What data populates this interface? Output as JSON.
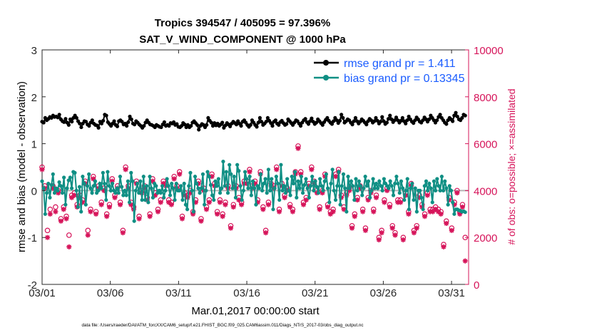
{
  "chart_data": {
    "type": "line",
    "title": "Tropics 394547 / 405095 = 97.396%",
    "subtitle": "SAT_V_WIND_COMPONENT @ 1000 hPa",
    "xlabel": "Mar.01,2017 00:00:00 start",
    "ylabel_left": "rmse and bias (model - observation)",
    "ylabel_right": "# of obs: o=possible; ×=assimilated",
    "footnote": "data file: /Users/raeder/DAI/ATM_forcXX/CAM6_setup/f.e21.FHIST_BGC.f09_025.CAM6assim.011/Diags_NTrS_2017-03/obs_diag_output.nc",
    "x_range": [
      0,
      31.25
    ],
    "y_left_range": [
      -2,
      3
    ],
    "y_right_range": [
      0,
      10000
    ],
    "x_ticks": [
      0,
      5,
      10,
      15,
      20,
      25,
      30
    ],
    "x_tick_labels": [
      "03/01",
      "03/06",
      "03/11",
      "03/16",
      "03/21",
      "03/26",
      "03/31"
    ],
    "y_left_ticks": [
      -2,
      -1,
      0,
      1,
      2,
      3
    ],
    "y_left_tick_labels": [
      "-2",
      "-1",
      "0",
      "1",
      "2",
      "3"
    ],
    "y_right_ticks": [
      0,
      2000,
      4000,
      6000,
      8000,
      10000
    ],
    "y_right_tick_labels": [
      "0",
      "2000",
      "4000",
      "6000",
      "8000",
      "10000"
    ],
    "legend_location": "top-right",
    "colors": {
      "rmse": "#000000",
      "bias": "#0f8f84",
      "obs": "#d6145a",
      "zero_line": "#b4b4b4",
      "axis": "#262626",
      "legend_text": "#1a5cff"
    },
    "series": [
      {
        "name": "rmse grand pr = 1.411",
        "marker": "filled-circle",
        "values": [
          1.47,
          1.45,
          1.55,
          1.5,
          1.53,
          1.57,
          1.55,
          1.6,
          1.57,
          1.58,
          1.56,
          1.62,
          1.52,
          1.48,
          1.46,
          1.53,
          1.45,
          1.4,
          1.52,
          1.47,
          1.55,
          1.6,
          1.55,
          1.48,
          1.43,
          1.35,
          1.43,
          1.48,
          1.47,
          1.41,
          1.38,
          1.45,
          1.5,
          1.43,
          1.4,
          1.39,
          1.34,
          1.47,
          1.43,
          1.49,
          1.62,
          1.6,
          1.46,
          1.42,
          1.38,
          1.43,
          1.48,
          1.4,
          1.37,
          1.48,
          1.5,
          1.47,
          1.41,
          1.43,
          1.38,
          1.46,
          1.58,
          1.52,
          1.43,
          1.41,
          1.48,
          1.45,
          1.41,
          1.38,
          1.34,
          1.38,
          1.45,
          1.5,
          1.45,
          1.41,
          1.4,
          1.38,
          1.35,
          1.4,
          1.38,
          1.36,
          1.35,
          1.41,
          1.46,
          1.38,
          1.4,
          1.38,
          1.44,
          1.43,
          1.46,
          1.4,
          1.42,
          1.36,
          1.35,
          1.38,
          1.44,
          1.41,
          1.35,
          1.4,
          1.35,
          1.38,
          1.45,
          1.48,
          1.44,
          1.4,
          1.3,
          1.38,
          1.42,
          1.4,
          1.35,
          1.4,
          1.55,
          1.49,
          1.45,
          1.38,
          1.44,
          1.39,
          1.43,
          1.38,
          1.41,
          1.45,
          1.34,
          1.39,
          1.44,
          1.41,
          1.37,
          1.43,
          1.47,
          1.44,
          1.41,
          1.48,
          1.43,
          1.38,
          1.47,
          1.5,
          1.45,
          1.4,
          1.36,
          1.4,
          1.5,
          1.45,
          1.4,
          1.36,
          1.45,
          1.55,
          1.47,
          1.4,
          1.43,
          1.47,
          1.55,
          1.49,
          1.44,
          1.38,
          1.47,
          1.5,
          1.43,
          1.4,
          1.46,
          1.49,
          1.44,
          1.4,
          1.42,
          1.52,
          1.48,
          1.44,
          1.4,
          1.45,
          1.5,
          1.48,
          1.43,
          1.38,
          1.45,
          1.5,
          1.53,
          1.46,
          1.42,
          1.48,
          1.54,
          1.47,
          1.42,
          1.45,
          1.52,
          1.48,
          1.44,
          1.4,
          1.46,
          1.51,
          1.55,
          1.49,
          1.45,
          1.42,
          1.48,
          1.55,
          1.5,
          1.44,
          1.49,
          1.62,
          1.55,
          1.45,
          1.48,
          1.52,
          1.5,
          1.45,
          1.41,
          1.48,
          1.55,
          1.48,
          1.43,
          1.47,
          1.52,
          1.49,
          1.45,
          1.41,
          1.48,
          1.53,
          1.5,
          1.45,
          1.48,
          1.55,
          1.49,
          1.43,
          1.47,
          1.57,
          1.48,
          1.42,
          1.45,
          1.53,
          1.6,
          1.52,
          1.46,
          1.5,
          1.56,
          1.5,
          1.45,
          1.49,
          1.55,
          1.48,
          1.43,
          1.5,
          1.58,
          1.52,
          1.47,
          1.44,
          1.5,
          1.56,
          1.52,
          1.47,
          1.45,
          1.5,
          1.56,
          1.52,
          1.47,
          1.52,
          1.6,
          1.55,
          1.5,
          1.45,
          1.5,
          1.57,
          1.62,
          1.55,
          1.5,
          1.45,
          1.42,
          1.5,
          1.55,
          1.52,
          1.48,
          1.6,
          1.66,
          1.58,
          1.52,
          1.5,
          1.55,
          1.62,
          1.6
        ]
      },
      {
        "name": "bias grand pr = 0.13345",
        "marker": "filled-circle",
        "values": [
          0.2,
          0.05,
          -0.5,
          -0.05,
          0.15,
          -0.15,
          0.12,
          0.35,
          -0.05,
          0.05,
          0.0,
          0.18,
          0.1,
          -0.05,
          0.28,
          -0.3,
          0.05,
          0.22,
          0.28,
          0.05,
          0.4,
          0.38,
          0.0,
          -0.35,
          0.08,
          -0.45,
          0.3,
          0.15,
          -0.3,
          0.1,
          0.35,
          0.05,
          -0.05,
          0.1,
          0.2,
          -0.05,
          0.0,
          0.15,
          0.05,
          0.38,
          0.15,
          -0.2,
          0.4,
          0.1,
          0.0,
          0.15,
          0.0,
          -0.05,
          0.05,
          -0.05,
          0.3,
          0.08,
          -0.1,
          0.0,
          -0.1,
          0.2,
          -0.25,
          0.38,
          0.2,
          -0.65,
          0.0,
          0.15,
          -0.05,
          0.2,
          -0.2,
          0.3,
          -0.2,
          0.1,
          -0.25,
          0.3,
          0.05,
          -0.15,
          0.15,
          0.1,
          -0.05,
          0.0,
          -0.05,
          0.1,
          -0.15,
          0.0,
          0.25,
          0.1,
          -0.1,
          0.15,
          0.05,
          -0.2,
          0.15,
          0.0,
          0.0,
          0.1,
          -0.2,
          0.15,
          -0.3,
          -0.4,
          0.1,
          0.38,
          0.0,
          -0.45,
          0.3,
          0.15,
          0.05,
          -0.05,
          0.05,
          0.35,
          -0.3,
          0.0,
          0.4,
          0.3,
          0.12,
          -0.1,
          -0.2,
          0.2,
          0.1,
          0.25,
          -0.05,
          0.05,
          0.62,
          0.1,
          0.4,
          -0.05,
          0.55,
          0.35,
          0.05,
          0.3,
          -0.15,
          0.55,
          0.42,
          0.1,
          -0.2,
          0.0,
          0.4,
          0.25,
          0.05,
          0.3,
          -0.1,
          0.2,
          0.05,
          -0.3,
          0.1,
          0.05,
          0.35,
          0.0,
          0.15,
          0.25,
          -0.05,
          0.45,
          0.0,
          0.25,
          -0.4,
          0.05,
          0.3,
          0.15,
          -0.2,
          0.55,
          0.0,
          0.1,
          -0.05,
          0.25,
          0.0,
          -0.1,
          0.3,
          0.15,
          0.4,
          -0.15,
          0.2,
          0.05,
          0.3,
          -0.05,
          0.12,
          0.25,
          0.05,
          -0.15,
          0.1,
          0.3,
          0.0,
          0.2,
          0.08,
          -0.05,
          0.25,
          0.1,
          0.0,
          0.2,
          0.35,
          0.05,
          -0.25,
          0.15,
          0.45,
          0.0,
          -0.2,
          0.1,
          0.4,
          -0.3,
          0.1,
          0.35,
          0.05,
          -0.45,
          0.3,
          0.05,
          0.2,
          0.1,
          -0.2,
          0.25,
          0.0,
          0.2,
          0.1,
          -0.1,
          0.05,
          0.3,
          0.1,
          0.2,
          -0.15,
          0.0,
          0.25,
          0.05,
          0.15,
          0.05,
          0.2,
          0.1,
          0.0,
          0.25,
          0.15,
          0.1,
          0.05,
          0.2,
          0.1,
          -0.1,
          0.15,
          0.3,
          0.15,
          -0.05,
          0.2,
          0.05,
          -0.2,
          0.0,
          0.25,
          -0.4,
          0.05,
          0.15,
          -0.2,
          0.05,
          -0.45,
          0.0,
          0.0,
          -0.15,
          -0.4,
          0.1,
          0.2,
          0.0,
          0.15,
          0.05,
          -0.25,
          0.2,
          0.0,
          0.25,
          0.1,
          0.0,
          0.3,
          0.0,
          0.2,
          0.05,
          -0.3,
          0.1,
          0.0,
          -0.25,
          -0.5,
          -0.4,
          -0.4,
          -0.42,
          -0.43,
          -0.45,
          -0.44,
          -0.46
        ]
      },
      {
        "name": "# obs possible",
        "axis": "right",
        "marker": "open-circle",
        "values": [
          5000,
          4200,
          2300,
          3200,
          4200,
          3300,
          4000,
          2800,
          3300,
          2900,
          2100,
          3800,
          3900,
          3400,
          3800,
          3600,
          4400,
          2300,
          3200,
          4600,
          3100,
          4200,
          3500,
          4100,
          3000,
          3400,
          4500,
          3800,
          4200,
          3500,
          2300,
          5000,
          4200,
          3500,
          3300,
          4400,
          2900,
          4000,
          4200,
          3700,
          3000,
          4500,
          3900,
          3200,
          3600,
          4400,
          4300,
          3600,
          3500,
          4600,
          4200,
          4800,
          2900,
          3900,
          3800,
          4000,
          3100,
          3600,
          4400,
          2800,
          4100,
          3300,
          3600,
          4700,
          4300,
          3100,
          3600,
          3000,
          3500,
          4200,
          2500,
          3400,
          4200,
          3700,
          3500,
          4400,
          4400,
          4900,
          4200,
          4400,
          3600,
          4800,
          3300,
          2300,
          3500,
          4300,
          4200,
          5000,
          3200,
          4300,
          3800,
          4100,
          3400,
          3200,
          4800,
          5900,
          4800,
          3500,
          3700,
          4300,
          5000,
          4400,
          4000,
          3300,
          4000,
          4700,
          3400,
          3100,
          3200,
          4700,
          4900,
          3800,
          3300,
          3900,
          4100,
          2500,
          3000,
          3700,
          4200,
          3200,
          2400,
          3700,
          4000,
          3200,
          3800,
          2000,
          2300,
          3600,
          4100,
          3400,
          2500,
          2200,
          3600,
          3600,
          2000,
          3900,
          3100,
          4300,
          2300,
          2500,
          3800,
          3400,
          3000,
          3900,
          3200,
          3200,
          3300,
          3200,
          3100,
          1700,
          2700,
          3700,
          2400,
          3500,
          4000,
          3100,
          3400,
          2000
        ]
      },
      {
        "name": "# obs assimilated",
        "axis": "right",
        "marker": "asterisk",
        "values": [
          4900,
          4100,
          2000,
          3000,
          4100,
          3100,
          3900,
          2700,
          3200,
          2800,
          1600,
          3700,
          3800,
          3300,
          3700,
          3500,
          4300,
          2100,
          3100,
          4500,
          3000,
          4100,
          3400,
          4000,
          2900,
          3300,
          4400,
          3700,
          4100,
          3400,
          2200,
          4900,
          4100,
          3400,
          3200,
          4300,
          2800,
          3900,
          4100,
          3600,
          2900,
          4400,
          3800,
          3100,
          3500,
          4300,
          4200,
          3500,
          3400,
          4500,
          4100,
          4700,
          2800,
          3800,
          3700,
          3900,
          3000,
          3500,
          4300,
          2700,
          4000,
          3200,
          3500,
          4600,
          4200,
          3000,
          3500,
          2900,
          3400,
          4100,
          2400,
          3300,
          4100,
          3600,
          3400,
          4300,
          4300,
          4800,
          4100,
          4300,
          3500,
          4700,
          3200,
          2200,
          3400,
          4200,
          4100,
          4900,
          3100,
          4200,
          3700,
          4000,
          3300,
          3100,
          4700,
          5800,
          4700,
          3400,
          3600,
          4200,
          4900,
          4300,
          3900,
          3200,
          3900,
          4600,
          3300,
          3000,
          3100,
          4600,
          4800,
          3700,
          3200,
          3800,
          4000,
          2400,
          2900,
          3600,
          4100,
          3100,
          2300,
          3600,
          3900,
          3100,
          3700,
          1900,
          2200,
          3500,
          4000,
          3300,
          2400,
          2100,
          3500,
          3500,
          1900,
          3800,
          3000,
          4200,
          2200,
          2400,
          3700,
          3300,
          2900,
          3800,
          3100,
          3100,
          3200,
          3100,
          3000,
          1600,
          2600,
          3600,
          2300,
          3400,
          3900,
          3000,
          3300,
          1000
        ]
      }
    ]
  }
}
